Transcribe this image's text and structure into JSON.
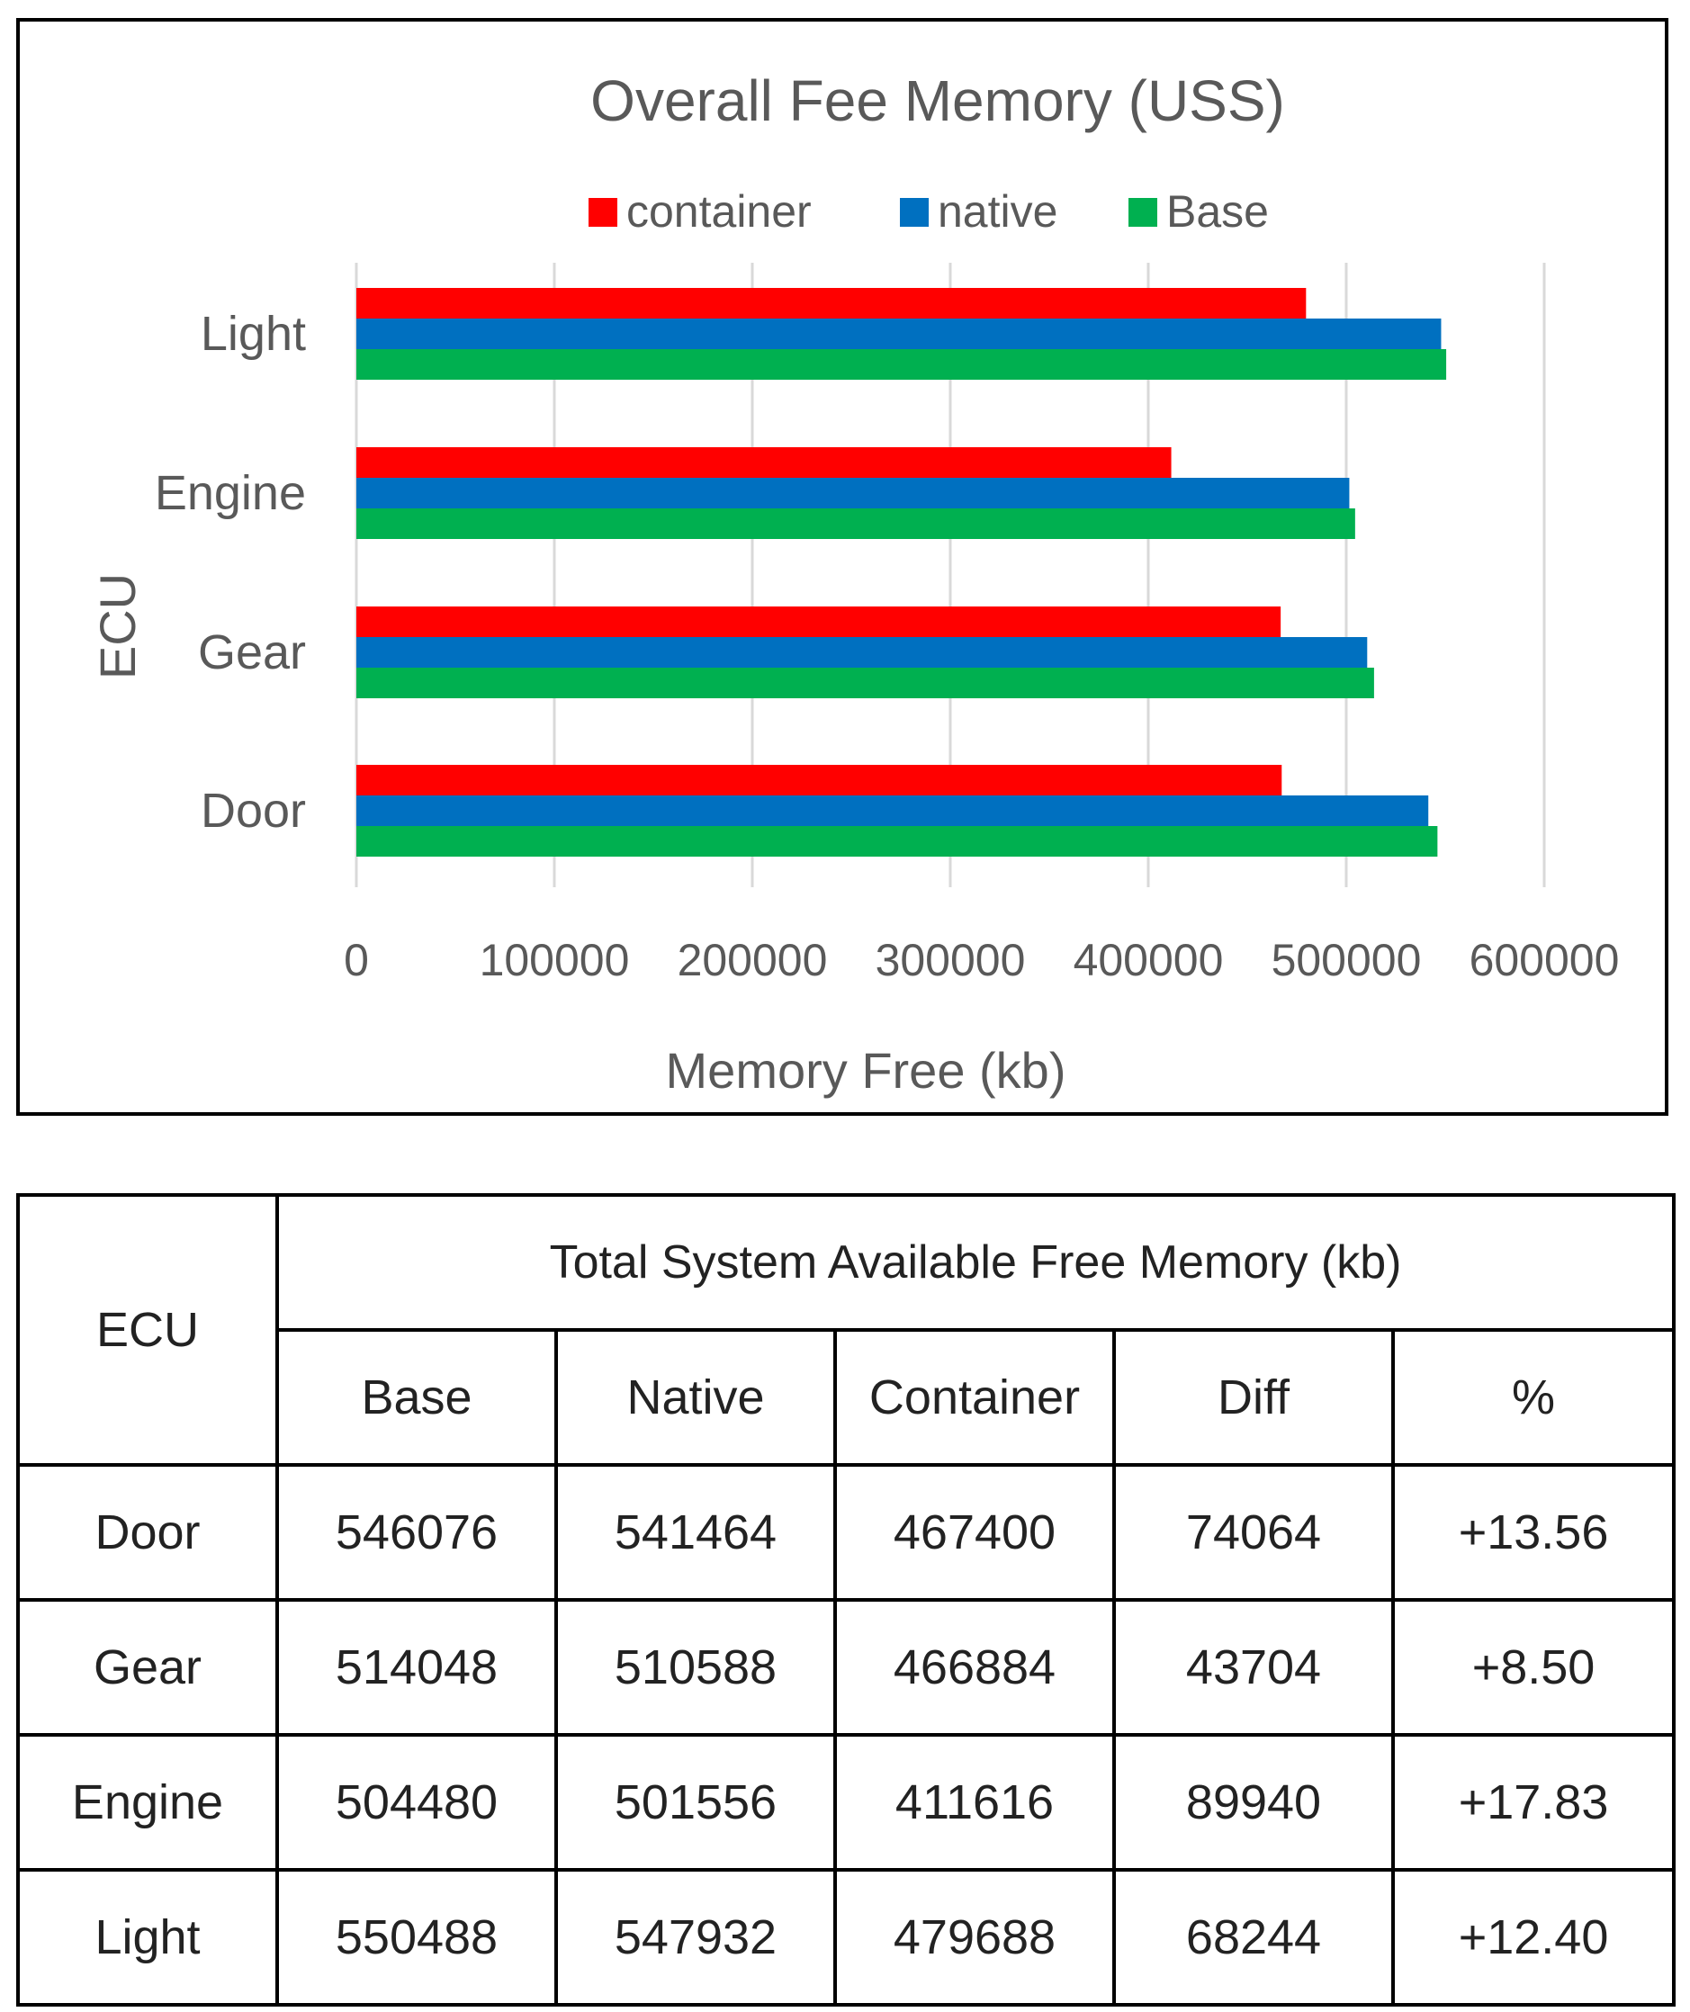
{
  "chart_data": {
    "type": "bar",
    "orientation": "horizontal",
    "title": "Overall Fee Memory (USS)",
    "xlabel": "Memory Free (kb)",
    "ylabel": "ECU",
    "categories": [
      "Door",
      "Gear",
      "Engine",
      "Light"
    ],
    "series": [
      {
        "name": "container",
        "color": "#ff0000",
        "values": [
          467400,
          466884,
          411616,
          479688
        ]
      },
      {
        "name": "native",
        "color": "#0070c0",
        "values": [
          541464,
          510588,
          501556,
          547932
        ]
      },
      {
        "name": "Base",
        "color": "#00b050",
        "values": [
          546076,
          514048,
          504480,
          550488
        ]
      }
    ],
    "xlim": [
      0,
      600000
    ],
    "xticks": [
      "0",
      "100000",
      "200000",
      "300000",
      "400000",
      "500000",
      "600000"
    ],
    "grid": "vertical",
    "legend": "top"
  },
  "table": {
    "ecu_header": "ECU",
    "group_header": "Total System Available Free Memory (kb)",
    "columns": [
      "Base",
      "Native",
      "Container",
      "Diff",
      "%"
    ],
    "rows": [
      {
        "ecu": "Door",
        "cells": [
          "546076",
          "541464",
          "467400",
          "74064",
          "+13.56"
        ]
      },
      {
        "ecu": "Gear",
        "cells": [
          "514048",
          "510588",
          "466884",
          "43704",
          "+8.50"
        ]
      },
      {
        "ecu": "Engine",
        "cells": [
          "504480",
          "501556",
          "411616",
          "89940",
          "+17.83"
        ]
      },
      {
        "ecu": "Light",
        "cells": [
          "550488",
          "547932",
          "479688",
          "68244",
          "+12.40"
        ]
      }
    ]
  }
}
